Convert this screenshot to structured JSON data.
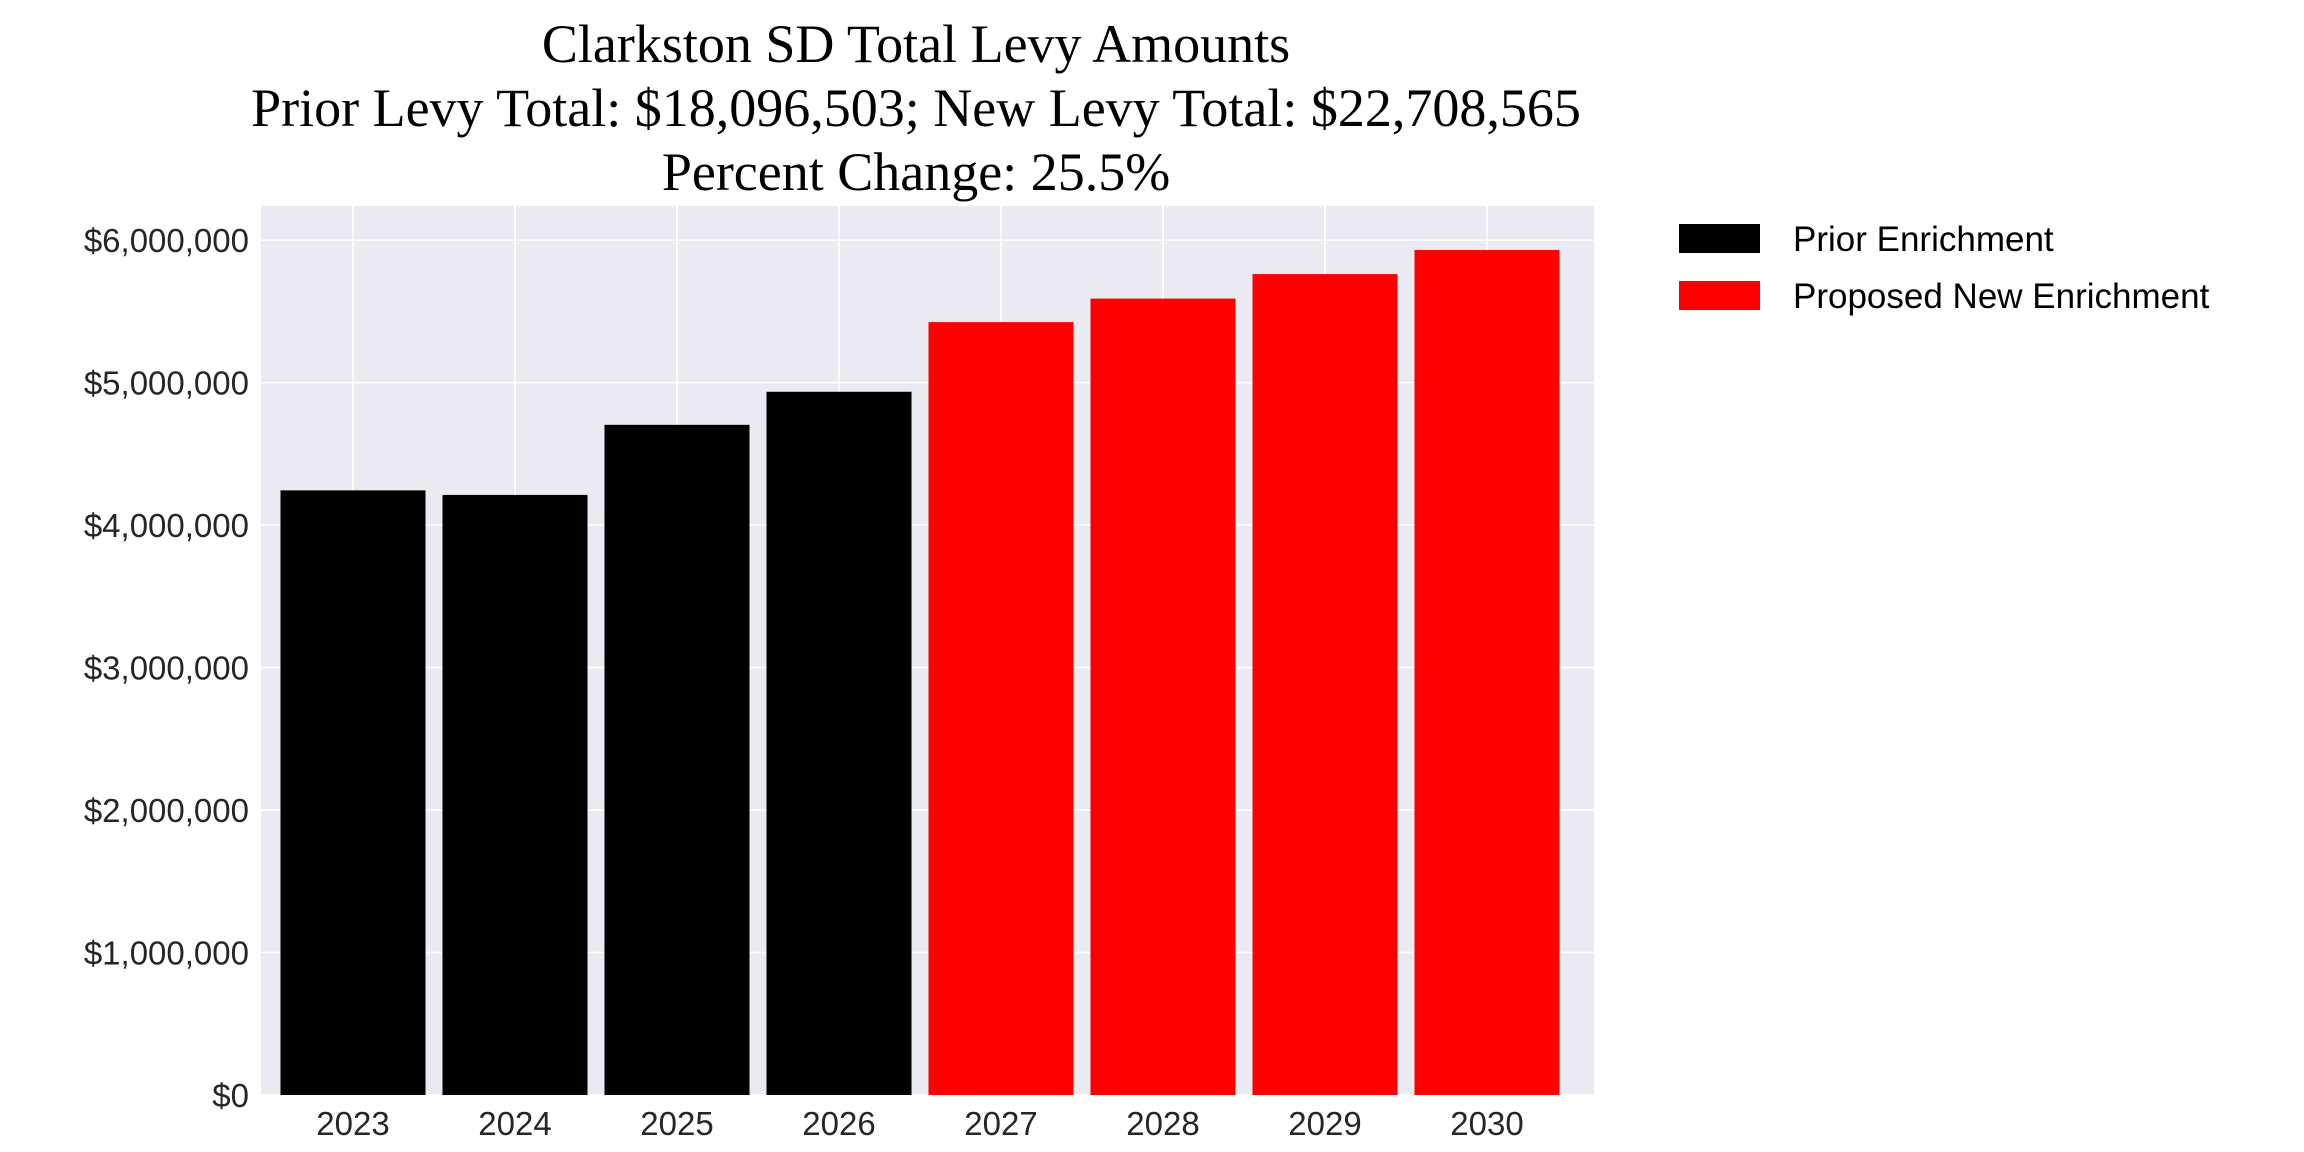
{
  "chart_data": {
    "type": "bar",
    "title_lines": [
      "Clarkston SD Total Levy Amounts",
      "Prior Levy Total:  $18,096,503; New Levy Total: $22,708,565",
      "Percent Change: 25.5%"
    ],
    "xlabel": "",
    "ylabel": "",
    "categories": [
      "2023",
      "2024",
      "2025",
      "2026",
      "2027",
      "2028",
      "2029",
      "2030"
    ],
    "series": [
      {
        "name": "Prior Enrichment",
        "color": "#000000",
        "values": [
          4244000,
          4212000,
          4704000,
          4936000,
          null,
          null,
          null,
          null
        ]
      },
      {
        "name": "Proposed New Enrichment",
        "color": "#ff0000",
        "values": [
          null,
          null,
          null,
          null,
          5425000,
          5590000,
          5762000,
          5931000
        ]
      }
    ],
    "ylim": [
      0,
      6240000
    ],
    "yticks": [
      0,
      1000000,
      2000000,
      3000000,
      4000000,
      5000000,
      6000000
    ],
    "ytick_labels": [
      "$0",
      "$1,000,000",
      "$2,000,000",
      "$3,000,000",
      "$4,000,000",
      "$5,000,000",
      "$6,000,000"
    ],
    "grid": true,
    "legend_placement": "outside-top-right",
    "background": "#eaeaf2"
  }
}
